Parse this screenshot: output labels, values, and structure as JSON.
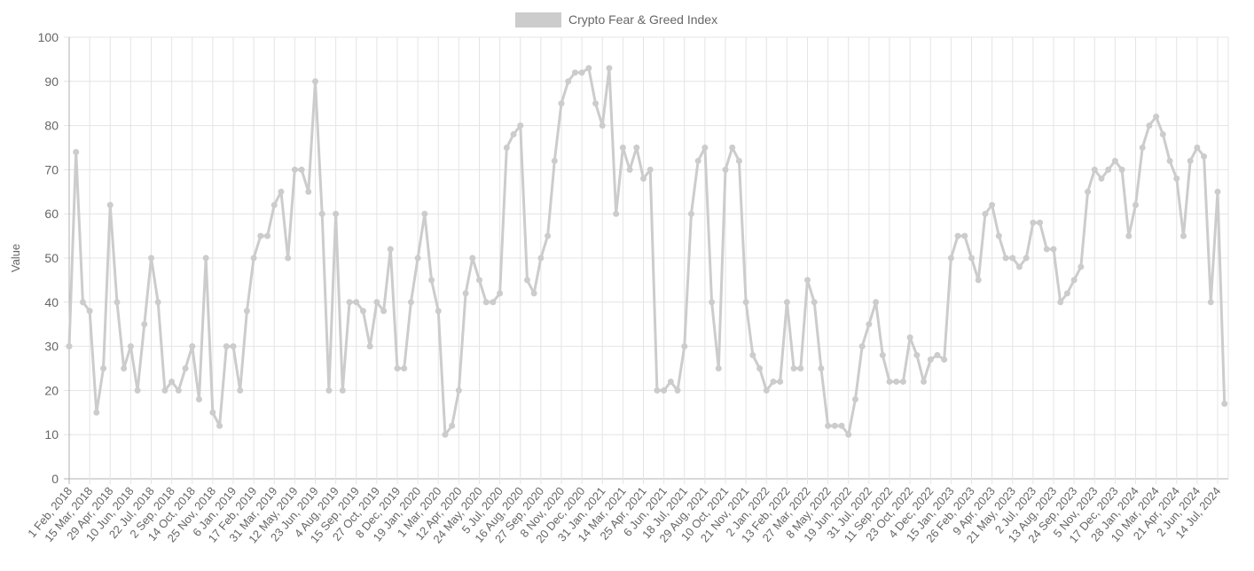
{
  "chart_data": {
    "type": "line",
    "title": "",
    "xlabel": "",
    "ylabel": "Value",
    "ylim": [
      0,
      100
    ],
    "yticks": [
      0,
      10,
      20,
      30,
      40,
      50,
      60,
      70,
      80,
      90,
      100
    ],
    "grid": true,
    "legend_position": "top",
    "series_color": "#cccccc",
    "xtick_labels": [
      "1 Feb, 2018",
      "15 Mar, 2018",
      "29 Apr, 2018",
      "10 Jun, 2018",
      "22 Jul, 2018",
      "2 Sep, 2018",
      "14 Oct, 2018",
      "25 Nov, 2018",
      "6 Jan, 2019",
      "17 Feb, 2019",
      "31 Mar, 2019",
      "12 May, 2019",
      "23 Jun, 2019",
      "4 Aug, 2019",
      "15 Sep, 2019",
      "27 Oct, 2019",
      "8 Dec, 2019",
      "19 Jan, 2020",
      "1 Mar, 2020",
      "12 Apr, 2020",
      "24 May, 2020",
      "5 Jul, 2020",
      "16 Aug, 2020",
      "27 Sep, 2020",
      "8 Nov, 2020",
      "20 Dec, 2020",
      "31 Jan, 2021",
      "14 Mar, 2021",
      "25 Apr, 2021",
      "6 Jun, 2021",
      "18 Jul, 2021",
      "29 Aug, 2021",
      "10 Oct, 2021",
      "21 Nov, 2021",
      "2 Jan, 2022",
      "13 Feb, 2022",
      "27 Mar, 2022",
      "8 May, 2022",
      "19 Jun, 2022",
      "31 Jul, 2022",
      "11 Sep, 2022",
      "23 Oct, 2022",
      "4 Dec, 2022",
      "15 Jan, 2023",
      "26 Feb, 2023",
      "9 Apr, 2023",
      "21 May, 2023",
      "2 Jul, 2023",
      "13 Aug, 2023",
      "24 Sep, 2023",
      "5 Nov, 2023",
      "17 Dec, 2023",
      "28 Jan, 2024",
      "10 Mar, 2024",
      "21 Apr, 2024",
      "2 Jun, 2024",
      "14 Jul, 2024"
    ],
    "x": [
      "2018-02-01",
      "2018-02-15",
      "2018-03-01",
      "2018-03-15",
      "2018-03-29",
      "2018-04-12",
      "2018-04-29",
      "2018-05-13",
      "2018-05-27",
      "2018-06-10",
      "2018-06-24",
      "2018-07-08",
      "2018-07-22",
      "2018-08-05",
      "2018-08-19",
      "2018-09-02",
      "2018-09-16",
      "2018-09-30",
      "2018-10-14",
      "2018-10-28",
      "2018-11-11",
      "2018-11-25",
      "2018-12-09",
      "2018-12-23",
      "2019-01-06",
      "2019-01-20",
      "2019-02-03",
      "2019-02-17",
      "2019-03-03",
      "2019-03-17",
      "2019-03-31",
      "2019-04-14",
      "2019-04-28",
      "2019-05-12",
      "2019-05-26",
      "2019-06-09",
      "2019-06-23",
      "2019-07-07",
      "2019-07-21",
      "2019-08-04",
      "2019-08-18",
      "2019-09-01",
      "2019-09-15",
      "2019-09-29",
      "2019-10-13",
      "2019-10-27",
      "2019-11-10",
      "2019-11-24",
      "2019-12-08",
      "2019-12-22",
      "2020-01-05",
      "2020-01-19",
      "2020-02-02",
      "2020-02-16",
      "2020-03-01",
      "2020-03-15",
      "2020-03-29",
      "2020-04-12",
      "2020-04-26",
      "2020-05-10",
      "2020-05-24",
      "2020-06-07",
      "2020-06-21",
      "2020-07-05",
      "2020-07-19",
      "2020-08-02",
      "2020-08-16",
      "2020-08-30",
      "2020-09-13",
      "2020-09-27",
      "2020-10-11",
      "2020-10-25",
      "2020-11-08",
      "2020-11-22",
      "2020-12-06",
      "2020-12-20",
      "2021-01-03",
      "2021-01-17",
      "2021-01-31",
      "2021-02-14",
      "2021-02-28",
      "2021-03-14",
      "2021-03-28",
      "2021-04-11",
      "2021-04-25",
      "2021-05-09",
      "2021-05-23",
      "2021-06-06",
      "2021-06-20",
      "2021-07-04",
      "2021-07-18",
      "2021-08-01",
      "2021-08-15",
      "2021-08-29",
      "2021-09-12",
      "2021-09-26",
      "2021-10-10",
      "2021-10-24",
      "2021-11-07",
      "2021-11-21",
      "2021-12-05",
      "2021-12-19",
      "2022-01-02",
      "2022-01-16",
      "2022-01-30",
      "2022-02-13",
      "2022-02-27",
      "2022-03-13",
      "2022-03-27",
      "2022-04-10",
      "2022-04-24",
      "2022-05-08",
      "2022-05-22",
      "2022-06-05",
      "2022-06-19",
      "2022-07-03",
      "2022-07-17",
      "2022-07-31",
      "2022-08-14",
      "2022-08-28",
      "2022-09-11",
      "2022-09-25",
      "2022-10-09",
      "2022-10-23",
      "2022-11-06",
      "2022-11-20",
      "2022-12-04",
      "2022-12-18",
      "2023-01-01",
      "2023-01-15",
      "2023-01-29",
      "2023-02-12",
      "2023-02-26",
      "2023-03-12",
      "2023-03-26",
      "2023-04-09",
      "2023-04-23",
      "2023-05-07",
      "2023-05-21",
      "2023-06-04",
      "2023-06-18",
      "2023-07-02",
      "2023-07-16",
      "2023-07-30",
      "2023-08-13",
      "2023-08-27",
      "2023-09-10",
      "2023-09-24",
      "2023-10-08",
      "2023-10-22",
      "2023-11-05",
      "2023-11-19",
      "2023-12-03",
      "2023-12-17",
      "2023-12-31",
      "2024-01-14",
      "2024-01-28",
      "2024-02-11",
      "2024-02-25",
      "2024-03-10",
      "2024-03-24",
      "2024-04-07",
      "2024-04-21",
      "2024-05-05",
      "2024-05-19",
      "2024-06-02",
      "2024-06-16",
      "2024-06-30",
      "2024-07-14",
      "2024-07-28"
    ],
    "series": [
      {
        "name": "Crypto Fear & Greed Index",
        "values": [
          30,
          74,
          40,
          38,
          15,
          25,
          62,
          40,
          25,
          30,
          20,
          35,
          50,
          40,
          20,
          22,
          20,
          25,
          30,
          18,
          50,
          15,
          12,
          30,
          30,
          20,
          38,
          50,
          55,
          55,
          62,
          65,
          50,
          70,
          70,
          65,
          90,
          60,
          20,
          60,
          20,
          40,
          40,
          38,
          30,
          40,
          38,
          52,
          25,
          25,
          40,
          50,
          60,
          45,
          38,
          10,
          12,
          20,
          42,
          50,
          45,
          40,
          40,
          42,
          75,
          78,
          80,
          45,
          42,
          50,
          55,
          72,
          85,
          90,
          92,
          92,
          93,
          85,
          80,
          93,
          60,
          75,
          70,
          75,
          68,
          70,
          20,
          20,
          22,
          20,
          30,
          60,
          72,
          75,
          40,
          25,
          70,
          75,
          72,
          40,
          28,
          25,
          20,
          22,
          22,
          40,
          25,
          25,
          45,
          40,
          25,
          12,
          12,
          12,
          10,
          18,
          30,
          35,
          40,
          28,
          22,
          22,
          22,
          32,
          28,
          22,
          27,
          28,
          27,
          50,
          55,
          55,
          50,
          45,
          60,
          62,
          55,
          50,
          50,
          48,
          50,
          58,
          58,
          52,
          52,
          40,
          42,
          45,
          48,
          65,
          70,
          68,
          70,
          72,
          70,
          55,
          62,
          75,
          80,
          82,
          78,
          72,
          68,
          55,
          72,
          75,
          73,
          40,
          65,
          17
        ]
      }
    ]
  }
}
